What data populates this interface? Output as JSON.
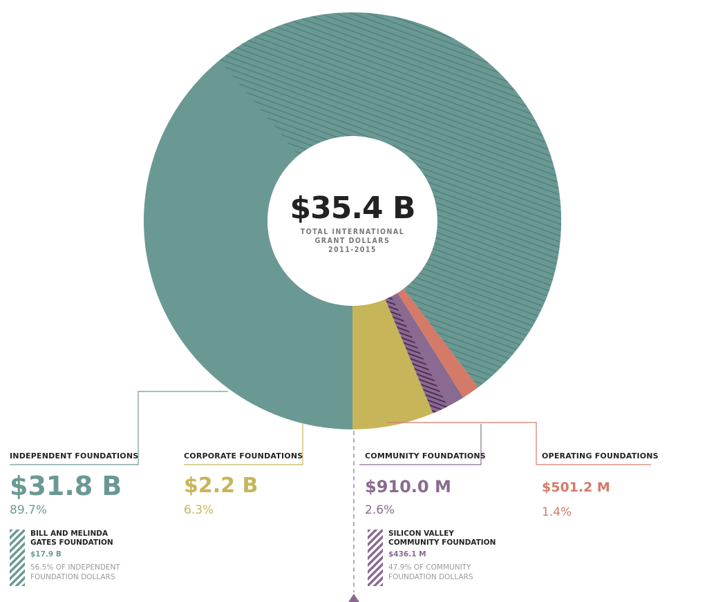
{
  "chart_data": {
    "type": "pie",
    "center": {
      "value": "$35.4 B",
      "label_lines": [
        "TOTAL INTERNATIONAL",
        "GRANT DOLLARS",
        "2011-2015"
      ]
    },
    "slices": [
      {
        "key": "independent",
        "label": "INDEPENDENT FOUNDATIONS",
        "amount": "$31.8 B",
        "percent_label": "89.7%",
        "value": 89.7,
        "color": "#6a9994",
        "highlight": {
          "name_lines": [
            "BILL AND MELINDA",
            "GATES FOUNDATION"
          ],
          "amount": "$17.9 B",
          "note_lines": [
            "56.5% OF INDEPENDENT",
            "FOUNDATION DOLLARS"
          ],
          "share": 56.5
        }
      },
      {
        "key": "operating",
        "label": "OPERATING FOUNDATIONS",
        "amount": "$501.2 M",
        "percent_label": "1.4%",
        "value": 1.4,
        "color": "#d47a68"
      },
      {
        "key": "community",
        "label": "COMMUNITY FOUNDATIONS",
        "amount": "$910.0 M",
        "percent_label": "2.6%",
        "value": 2.6,
        "color": "#8a6a90",
        "highlight": {
          "name_lines": [
            "SILICON VALLEY",
            "COMMUNITY FOUNDATION"
          ],
          "amount": "$436.1 M",
          "note_lines": [
            "47.9% OF COMMUNITY",
            "FOUNDATION DOLLARS"
          ],
          "share": 47.9
        }
      },
      {
        "key": "corporate",
        "label": "CORPORATE FOUNDATIONS",
        "amount": "$2.2 B",
        "percent_label": "6.3%",
        "value": 6.3,
        "color": "#c7b55a"
      }
    ]
  }
}
